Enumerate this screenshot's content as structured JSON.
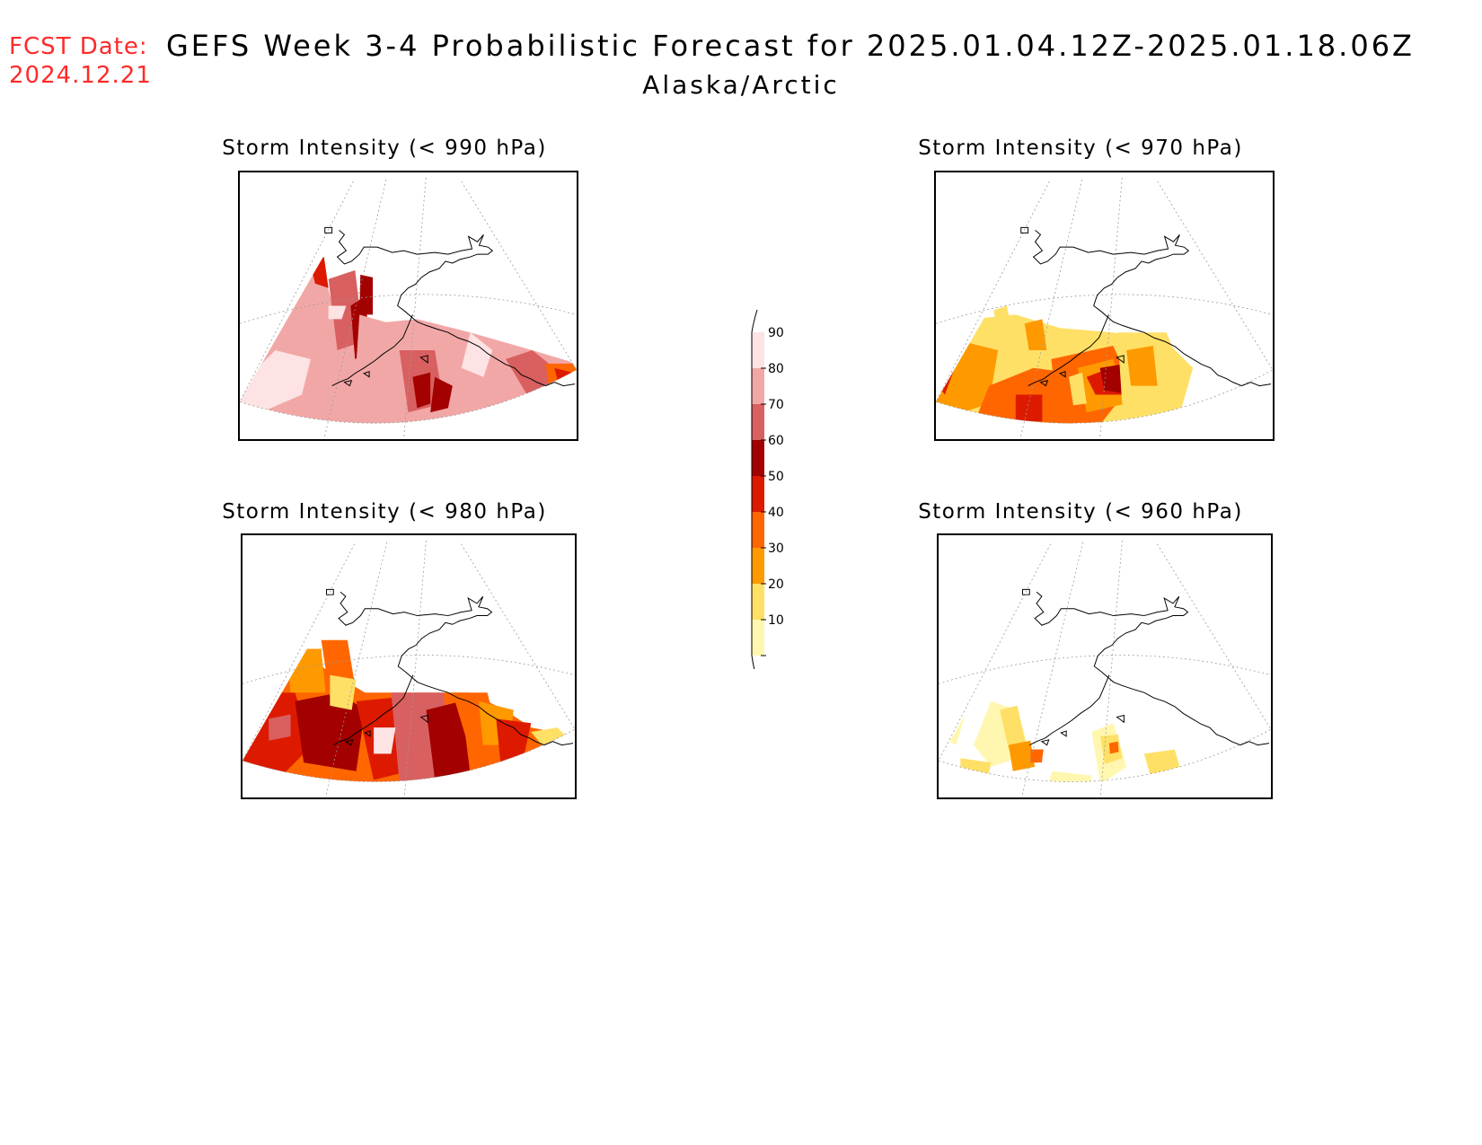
{
  "header": {
    "fcst_label": "FCST Date:",
    "fcst_date": "2024.12.21",
    "title": "GEFS Week 3-4 Probabilistic Forecast for 2025.01.04.12Z-2025.01.18.06Z",
    "subtitle": "Alaska/Arctic"
  },
  "panels": [
    {
      "id": "p990",
      "title": "Storm Intensity (< 990 hPa)"
    },
    {
      "id": "p970",
      "title": "Storm Intensity (< 970 hPa)"
    },
    {
      "id": "p980",
      "title": "Storm Intensity (< 980 hPa)"
    },
    {
      "id": "p960",
      "title": "Storm Intensity (< 960 hPa)"
    }
  ],
  "colorbar": {
    "levels": [
      "90",
      "80",
      "70",
      "60",
      "50",
      "40",
      "30",
      "20",
      "10"
    ],
    "colors": [
      "#fde3e3",
      "#f2a7a7",
      "#d96060",
      "#a30000",
      "#dd1a00",
      "#ff6600",
      "#ff9900",
      "#ffe066",
      "#fff7b0"
    ]
  }
}
